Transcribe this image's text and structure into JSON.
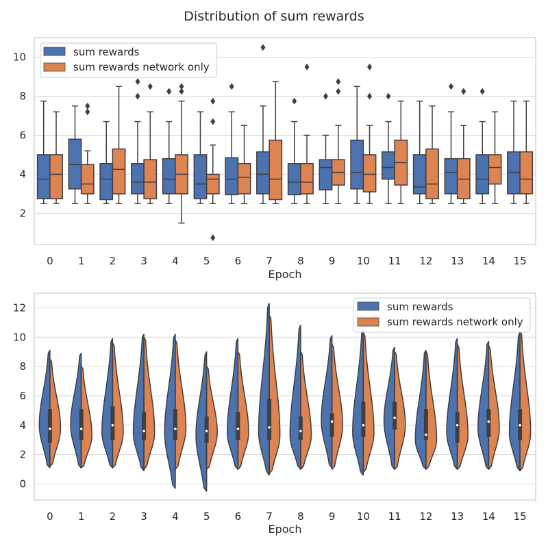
{
  "title": "Distribution of sum rewards",
  "colors": {
    "series_a": "#4c72b0",
    "series_b": "#dd8452",
    "line": "#3f3f3f"
  },
  "chart_data": [
    {
      "type": "box",
      "xlabel": "Epoch",
      "ylabel": "",
      "ylim": [
        0.4,
        11
      ],
      "yticks": [
        2,
        4,
        6,
        8,
        10
      ],
      "categories": [
        "0",
        "1",
        "2",
        "3",
        "4",
        "5",
        "6",
        "7",
        "8",
        "9",
        "10",
        "11",
        "12",
        "13",
        "14",
        "15"
      ],
      "legend_position": "top-left",
      "grid": true,
      "series": [
        {
          "name": "sum rewards",
          "boxes": [
            {
              "low": 2.5,
              "q1": 2.75,
              "med": 3.75,
              "q3": 5.0,
              "high": 7.75,
              "outliers": []
            },
            {
              "low": 2.5,
              "q1": 3.25,
              "med": 4.5,
              "q3": 5.8,
              "high": 7.5,
              "outliers": []
            },
            {
              "low": 2.5,
              "q1": 2.7,
              "med": 3.75,
              "q3": 4.55,
              "high": 6.7,
              "outliers": []
            },
            {
              "low": 2.5,
              "q1": 3.0,
              "med": 3.6,
              "q3": 4.55,
              "high": 6.7,
              "outliers": [
                8.0,
                8.75
              ]
            },
            {
              "low": 2.5,
              "q1": 3.0,
              "med": 3.75,
              "q3": 4.8,
              "high": 6.7,
              "outliers": [
                8.25
              ]
            },
            {
              "low": 2.5,
              "q1": 2.75,
              "med": 3.5,
              "q3": 5.0,
              "high": 7.2,
              "outliers": []
            },
            {
              "low": 2.5,
              "q1": 2.95,
              "med": 3.75,
              "q3": 4.85,
              "high": 7.2,
              "outliers": [
                8.5
              ]
            },
            {
              "low": 2.5,
              "q1": 3.0,
              "med": 4.0,
              "q3": 5.15,
              "high": 7.5,
              "outliers": [
                10.5
              ]
            },
            {
              "low": 2.5,
              "q1": 2.95,
              "med": 3.6,
              "q3": 4.55,
              "high": 6.7,
              "outliers": [
                7.75
              ]
            },
            {
              "low": 2.5,
              "q1": 3.2,
              "med": 4.35,
              "q3": 4.75,
              "high": 6.0,
              "outliers": [
                8.0
              ]
            },
            {
              "low": 2.5,
              "q1": 3.25,
              "med": 4.1,
              "q3": 5.75,
              "high": 8.5,
              "outliers": []
            },
            {
              "low": 2.5,
              "q1": 3.75,
              "med": 4.35,
              "q3": 5.15,
              "high": 6.7,
              "outliers": [
                8.0
              ]
            },
            {
              "low": 2.5,
              "q1": 3.0,
              "med": 3.35,
              "q3": 5.0,
              "high": 7.75,
              "outliers": []
            },
            {
              "low": 2.5,
              "q1": 3.0,
              "med": 4.1,
              "q3": 4.8,
              "high": 7.2,
              "outliers": [
                8.5
              ]
            },
            {
              "low": 2.5,
              "q1": 3.0,
              "med": 3.75,
              "q3": 5.0,
              "high": 6.7,
              "outliers": [
                8.25
              ]
            },
            {
              "low": 2.5,
              "q1": 3.0,
              "med": 4.1,
              "q3": 5.15,
              "high": 7.75,
              "outliers": []
            }
          ]
        },
        {
          "name": "sum rewards network only",
          "boxes": [
            {
              "low": 2.5,
              "q1": 2.75,
              "med": 4.0,
              "q3": 5.0,
              "high": 7.2,
              "outliers": []
            },
            {
              "low": 2.5,
              "q1": 3.0,
              "med": 3.5,
              "q3": 4.5,
              "high": 5.2,
              "outliers": [
                7.2,
                7.5
              ]
            },
            {
              "low": 2.5,
              "q1": 3.0,
              "med": 4.25,
              "q3": 5.3,
              "high": 8.5,
              "outliers": []
            },
            {
              "low": 2.5,
              "q1": 2.75,
              "med": 3.6,
              "q3": 4.75,
              "high": 7.2,
              "outliers": [
                8.5
              ]
            },
            {
              "low": 1.5,
              "q1": 3.0,
              "med": 4.0,
              "q3": 5.0,
              "high": 7.75,
              "outliers": [
                8.25,
                8.5
              ]
            },
            {
              "low": 2.5,
              "q1": 3.0,
              "med": 3.75,
              "q3": 4.0,
              "high": 5.5,
              "outliers": [
                0.75,
                6.7,
                7.75
              ]
            },
            {
              "low": 2.5,
              "q1": 3.0,
              "med": 3.85,
              "q3": 4.55,
              "high": 6.5,
              "outliers": []
            },
            {
              "low": 2.5,
              "q1": 2.7,
              "med": 3.75,
              "q3": 5.75,
              "high": 8.75,
              "outliers": []
            },
            {
              "low": 2.5,
              "q1": 3.0,
              "med": 3.6,
              "q3": 4.55,
              "high": 6.0,
              "outliers": [
                9.5
              ]
            },
            {
              "low": 2.5,
              "q1": 3.45,
              "med": 4.1,
              "q3": 4.75,
              "high": 6.5,
              "outliers": [
                8.25,
                8.75
              ]
            },
            {
              "low": 2.5,
              "q1": 3.1,
              "med": 4.0,
              "q3": 5.0,
              "high": 6.5,
              "outliers": [
                8.0,
                9.5
              ]
            },
            {
              "low": 2.5,
              "q1": 3.45,
              "med": 4.6,
              "q3": 5.75,
              "high": 7.75,
              "outliers": []
            },
            {
              "low": 2.5,
              "q1": 2.75,
              "med": 3.5,
              "q3": 5.3,
              "high": 7.5,
              "outliers": []
            },
            {
              "low": 2.5,
              "q1": 2.75,
              "med": 3.75,
              "q3": 4.8,
              "high": 6.5,
              "outliers": [
                8.25
              ]
            },
            {
              "low": 2.5,
              "q1": 3.5,
              "med": 4.35,
              "q3": 5.0,
              "high": 7.2,
              "outliers": []
            },
            {
              "low": 2.5,
              "q1": 3.0,
              "med": 3.75,
              "q3": 5.15,
              "high": 7.75,
              "outliers": []
            }
          ]
        }
      ]
    },
    {
      "type": "violin",
      "xlabel": "Epoch",
      "ylabel": "",
      "ylim": [
        -1.1,
        13.0
      ],
      "yticks": [
        0,
        2,
        4,
        6,
        8,
        10,
        12
      ],
      "categories": [
        "0",
        "1",
        "2",
        "3",
        "4",
        "5",
        "6",
        "7",
        "8",
        "9",
        "10",
        "11",
        "12",
        "13",
        "14",
        "15"
      ],
      "split": true,
      "legend_position": "top-right",
      "grid": true,
      "series": [
        {
          "name": "sum rewards",
          "violins": [
            {
              "min": 1.1,
              "max": 9.1,
              "q1": 2.8,
              "med": 3.75,
              "q3": 5.1,
              "mode": 4.0,
              "width": 0.85
            },
            {
              "min": 1.1,
              "max": 8.9,
              "q1": 3.0,
              "med": 3.75,
              "q3": 5.1,
              "mode": 4.0,
              "width": 0.85
            },
            {
              "min": 1.1,
              "max": 9.9,
              "q1": 3.0,
              "med": 4.0,
              "q3": 5.3,
              "mode": 3.5,
              "width": 0.85
            },
            {
              "min": 0.9,
              "max": 10.2,
              "q1": 3.0,
              "med": 3.6,
              "q3": 4.9,
              "mode": 3.5,
              "width": 0.85
            },
            {
              "min": -0.3,
              "max": 10.2,
              "q1": 3.0,
              "med": 3.75,
              "q3": 5.1,
              "mode": 3.5,
              "width": 0.85
            },
            {
              "min": -0.5,
              "max": 9.0,
              "q1": 2.8,
              "med": 3.6,
              "q3": 4.6,
              "mode": 3.3,
              "width": 0.85
            },
            {
              "min": 1.0,
              "max": 9.9,
              "q1": 3.0,
              "med": 3.75,
              "q3": 4.9,
              "mode": 3.5,
              "width": 0.85
            },
            {
              "min": 0.6,
              "max": 12.3,
              "q1": 3.0,
              "med": 3.85,
              "q3": 5.8,
              "mode": 3.5,
              "width": 0.85
            },
            {
              "min": 1.0,
              "max": 10.8,
              "q1": 3.0,
              "med": 3.6,
              "q3": 4.6,
              "mode": 3.3,
              "width": 0.85
            },
            {
              "min": 1.1,
              "max": 10.1,
              "q1": 3.2,
              "med": 4.25,
              "q3": 4.8,
              "mode": 4.3,
              "width": 0.85
            },
            {
              "min": 0.6,
              "max": 10.5,
              "q1": 3.2,
              "med": 4.0,
              "q3": 5.6,
              "mode": 3.5,
              "width": 0.85
            },
            {
              "min": 1.0,
              "max": 9.3,
              "q1": 3.7,
              "med": 4.5,
              "q3": 5.6,
              "mode": 4.3,
              "width": 0.85
            },
            {
              "min": 1.0,
              "max": 9.1,
              "q1": 3.0,
              "med": 3.35,
              "q3": 5.1,
              "mode": 3.0,
              "width": 0.85
            },
            {
              "min": 1.0,
              "max": 9.9,
              "q1": 2.8,
              "med": 4.0,
              "q3": 4.9,
              "mode": 3.5,
              "width": 0.85
            },
            {
              "min": 1.0,
              "max": 9.7,
              "q1": 3.2,
              "med": 4.25,
              "q3": 5.1,
              "mode": 3.8,
              "width": 0.85
            },
            {
              "min": 0.9,
              "max": 10.3,
              "q1": 3.0,
              "med": 4.0,
              "q3": 5.1,
              "mode": 3.5,
              "width": 0.85
            }
          ]
        },
        {
          "name": "sum rewards network only",
          "violins": [
            {
              "min": 1.2,
              "max": 8.5,
              "mode": 3.8,
              "width": 0.85
            },
            {
              "min": 1.1,
              "max": 8.0,
              "mode": 3.3,
              "width": 0.85
            },
            {
              "min": 1.1,
              "max": 9.6,
              "mode": 3.5,
              "width": 0.85
            },
            {
              "min": 1.0,
              "max": 10.0,
              "mode": 3.5,
              "width": 0.85
            },
            {
              "min": 1.0,
              "max": 9.8,
              "mode": 3.8,
              "width": 0.85
            },
            {
              "min": 1.0,
              "max": 8.0,
              "mode": 3.5,
              "width": 0.85
            },
            {
              "min": 1.0,
              "max": 9.0,
              "mode": 3.5,
              "width": 0.85
            },
            {
              "min": 0.7,
              "max": 11.5,
              "mode": 3.3,
              "width": 0.85
            },
            {
              "min": 1.0,
              "max": 9.0,
              "mode": 3.3,
              "width": 0.85
            },
            {
              "min": 1.0,
              "max": 9.5,
              "mode": 4.0,
              "width": 0.85
            },
            {
              "min": 0.8,
              "max": 10.3,
              "mode": 3.5,
              "width": 0.85
            },
            {
              "min": 1.0,
              "max": 9.0,
              "mode": 4.0,
              "width": 0.85
            },
            {
              "min": 1.0,
              "max": 9.0,
              "mode": 3.0,
              "width": 0.85
            },
            {
              "min": 1.0,
              "max": 9.5,
              "mode": 3.3,
              "width": 0.85
            },
            {
              "min": 1.0,
              "max": 9.4,
              "mode": 3.8,
              "width": 0.85
            },
            {
              "min": 0.9,
              "max": 10.4,
              "mode": 3.5,
              "width": 0.85
            }
          ]
        }
      ]
    }
  ]
}
